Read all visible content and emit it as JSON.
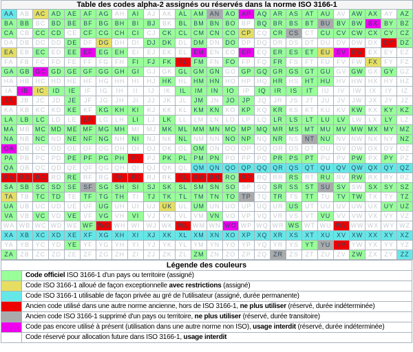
{
  "title": "Table des codes alpha-2 assignés ou réservés dans la norme ISO 3166-1",
  "alphabet": "ABCDEFGHIJKLMNOPQRSTUVWXYZ",
  "colors": {
    "green": "#99FF99",
    "yellow": "#E6DE62",
    "cyan": "#66E7E7",
    "red": "#EE0000",
    "gray": "#AAAAAA",
    "magenta": "#EE00EE",
    "white": "#FFFFFF",
    "grid_border": "#A8B2BC",
    "text_assigned": "#2A4B66",
    "text_unassigned": "#C6CBD2"
  },
  "status_key": {
    "g": "green",
    "y": "yellow",
    "c": "cyan",
    "r": "red",
    "a": "gray",
    "m": "magenta",
    "w": "white"
  },
  "grid_rows": {
    "A": "cwyggggwgwwggagmgggggwggwg",
    "B": "ggwgggggggwggggwggggaggmgg",
    "C": "gwggwggggwgggggywgawgggggg",
    "D": "wwwwgwywwggwgwgwwwwwwwwwrg",
    "E": "ywgwgmggwwwwmwwmwgggymrwww",
    "F": "wwwwwwwwgggrgwgwwgwwwwwyww",
    "G": "ggmggggggwwgggwggggggwgwgw",
    "H": "wwwwwwwwwwgwggwwwgwggwwwww",
    "I": "wmyggwwwwwwggggwggggwwwwww",
    "J": "rwwwgwwwwwwwgwggwwwwwwwwww",
    "K": "wwwwgwgggwwwggwgwgwwwwgwgg",
    "L": "gggwwrwwgwgwwwwwwgggggwwgw",
    "M": "gwggggggwwgggggggggggggggg",
    "N": "gwgwgggwgwwgwwggwgwagwwwwg",
    "O": "mwwwwwwwwwwwgwwwwwwwwwwwww",
    "P": "gwwwggggrwggggwwwgggwwgwgw",
    "Q": "gwwwwwwwwwwwcccccccccccccc",
    "R": "rrrwgwwrrwwrrrgrwwgwgwgwww",
    "S": "gggggagggggggggwwgggagwggg",
    "T": "ywggwgggwggggggawgwgwggwwg",
    "U": "gwwwwwgwwwywgwwwwwgwwwwwgg",
    "V": "gwgwgwgwgwwwwgwwwwwwgwwwww",
    "W": "wwwwwgrwwwwrwwmwwwgwwrwwww",
    "X": "cccccccccccccccccccccccccc",
    "Y": "wwwwgwwwwwwwwwwwwwwgarwwww",
    "Z": "gwwwwwwwwwwwgwwwwawwwwgwwc"
  },
  "legend": {
    "header": "Légende des couleurs",
    "entries": [
      {
        "color": "green",
        "parts": [
          {
            "text": "Code officiel",
            "bold": true
          },
          {
            "text": " ISO 3166-1 d'un pays ou territoire (assigné)",
            "bold": false
          }
        ]
      },
      {
        "color": "yellow",
        "parts": [
          {
            "text": "Code ISO 3166-1 alloué de façon exceptionnelle ",
            "bold": false
          },
          {
            "text": "avec restrictions",
            "bold": true
          },
          {
            "text": " (assigné)",
            "bold": false
          }
        ]
      },
      {
        "color": "cyan",
        "parts": [
          {
            "text": "Code ISO 3166-1 utilisable de façon privée au gré de l'utilisateur (assigné, durée permanente)",
            "bold": false
          }
        ]
      },
      {
        "color": "red",
        "parts": [
          {
            "text": "Ancien code utilisé dans une autre norme ancienne, hors de ISO 3166-1, ",
            "bold": false
          },
          {
            "text": "ne plus utiliser",
            "bold": true
          },
          {
            "text": " (réservé, durée indéterminée)",
            "bold": false
          }
        ]
      },
      {
        "color": "gray",
        "parts": [
          {
            "text": "Ancien code ISO 3166-1 supprimé d'un pays ou territoire, ",
            "bold": false
          },
          {
            "text": "ne plus utiliser",
            "bold": true
          },
          {
            "text": " (réservé, durée transitoire)",
            "bold": false
          }
        ]
      },
      {
        "color": "magenta",
        "parts": [
          {
            "text": "Code pas encore utilisé à présent (utilisation dans une autre norme non ISO), ",
            "bold": false
          },
          {
            "text": "usage interdit",
            "bold": true
          },
          {
            "text": " (réservé, durée indéterminée)",
            "bold": false
          }
        ]
      },
      {
        "color": "white",
        "parts": [
          {
            "text": "Code réservé pour allocation future dans ISO 3166-1, ",
            "bold": false
          },
          {
            "text": "usage interdit",
            "bold": true
          }
        ]
      }
    ]
  }
}
